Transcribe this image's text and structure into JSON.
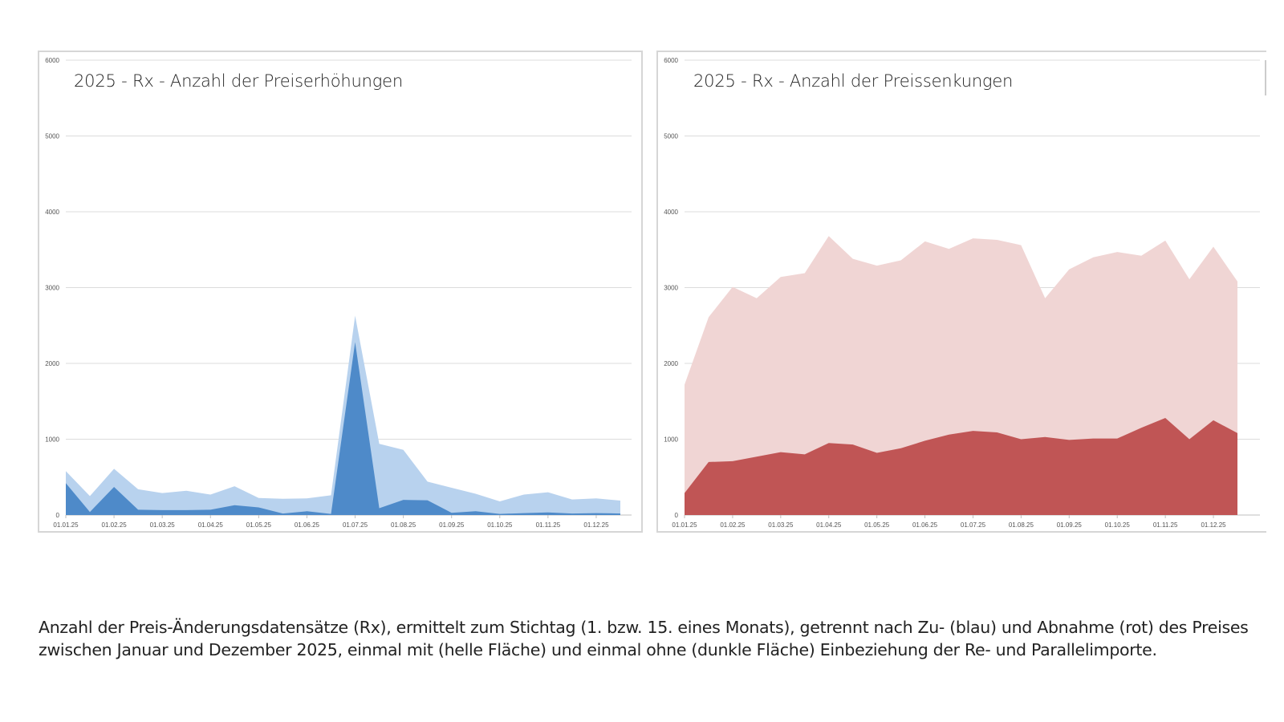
{
  "chart_data": [
    {
      "type": "area",
      "title": "2025 - Rx - Anzahl der Preiserhöhungen",
      "xlabel": "",
      "ylabel": "",
      "ylim": [
        0,
        6000
      ],
      "yticks": [
        "0",
        "1000",
        "2000",
        "3000",
        "4000",
        "5000",
        "6000"
      ],
      "xtick_labels": [
        "01.01.25",
        "01.02.25",
        "01.03.25",
        "01.04.25",
        "01.05.25",
        "01.06.25",
        "01.07.25",
        "01.08.25",
        "01.09.25",
        "01.10.25",
        "01.11.25",
        "01.12.25"
      ],
      "x": [
        "01.01.25",
        "15.01.25",
        "01.02.25",
        "15.02.25",
        "01.03.25",
        "15.03.25",
        "01.04.25",
        "15.04.25",
        "01.05.25",
        "15.05.25",
        "01.06.25",
        "15.06.25",
        "01.07.25",
        "15.07.25",
        "01.08.25",
        "15.08.25",
        "01.09.25",
        "15.09.25",
        "01.10.25",
        "15.10.25",
        "01.11.25",
        "15.11.25",
        "01.12.25",
        "15.12.25"
      ],
      "grid": true,
      "series": [
        {
          "name": "mit Re- und Parallelimporten",
          "color": "#b8d2ee",
          "values": [
            580,
            250,
            610,
            340,
            290,
            320,
            270,
            380,
            225,
            215,
            220,
            260,
            2630,
            940,
            860,
            440,
            360,
            280,
            180,
            270,
            300,
            205,
            220,
            190
          ]
        },
        {
          "name": "ohne Re- und Parallelimporte",
          "color": "#4e8ac9",
          "values": [
            420,
            40,
            370,
            70,
            65,
            65,
            70,
            130,
            100,
            20,
            50,
            15,
            2280,
            90,
            200,
            195,
            30,
            50,
            15,
            25,
            35,
            20,
            25,
            20
          ]
        }
      ]
    },
    {
      "type": "area",
      "title": "2025 - Rx - Anzahl der Preissenkungen",
      "xlabel": "",
      "ylabel": "",
      "ylim": [
        0,
        6000
      ],
      "yticks": [
        "0",
        "1000",
        "2000",
        "3000",
        "4000",
        "5000",
        "6000"
      ],
      "xtick_labels": [
        "01.01.25",
        "01.02.25",
        "01.03.25",
        "01.04.25",
        "01.05.25",
        "01.06.25",
        "01.07.25",
        "01.08.25",
        "01.09.25",
        "01.10.25",
        "01.11.25",
        "01.12.25"
      ],
      "x": [
        "01.01.25",
        "15.01.25",
        "01.02.25",
        "15.02.25",
        "01.03.25",
        "15.03.25",
        "01.04.25",
        "15.04.25",
        "01.05.25",
        "15.05.25",
        "01.06.25",
        "15.06.25",
        "01.07.25",
        "15.07.25",
        "01.08.25",
        "15.08.25",
        "01.09.25",
        "15.09.25",
        "01.10.25",
        "15.10.25",
        "01.11.25",
        "15.11.25",
        "01.12.25",
        "15.12.25"
      ],
      "grid": true,
      "series": [
        {
          "name": "mit Re- und Parallelimporten",
          "color": "#f0d5d4",
          "values": [
            1720,
            2610,
            3010,
            2860,
            3140,
            3190,
            3680,
            3380,
            3290,
            3360,
            3610,
            3510,
            3650,
            3630,
            3560,
            2860,
            3240,
            3400,
            3470,
            3420,
            3620,
            3110,
            3540,
            3080
          ]
        },
        {
          "name": "ohne Re- und Parallelimporte",
          "color": "#c05555",
          "values": [
            290,
            700,
            710,
            770,
            830,
            800,
            950,
            930,
            820,
            880,
            980,
            1060,
            1110,
            1090,
            1000,
            1030,
            990,
            1010,
            1010,
            1150,
            1280,
            1000,
            1250,
            1080
          ]
        }
      ]
    }
  ],
  "caption": "Anzahl der Preis-Änderungsdatensätze (Rx), ermittelt zum Stichtag (1. bzw. 15. eines Monats), getrennt nach Zu- (blau) und Abnahme (rot) des Preises zwischen Januar und Dezember 2025, einmal mit (helle Fläche) und einmal ohne (dunkle Fläche) Einbeziehung der Re- und Parallelimporte."
}
